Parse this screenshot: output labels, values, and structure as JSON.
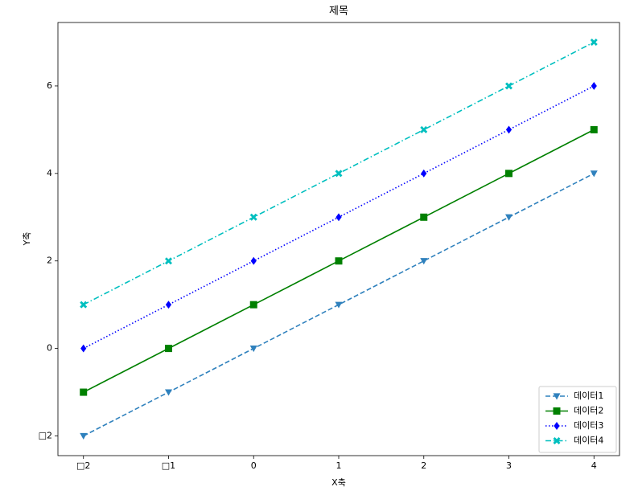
{
  "chart_data": {
    "type": "line",
    "title": "제목",
    "x_label": "X축",
    "y_label": "Y축",
    "x": [
      -2,
      -1,
      0,
      1,
      2,
      3,
      4
    ],
    "series": [
      {
        "name": "데이터1",
        "color": "#2f81bd",
        "linestyle": "--",
        "marker": "v",
        "values": [
          -2,
          -1,
          0,
          1,
          2,
          3,
          4
        ]
      },
      {
        "name": "데이터2",
        "color": "#008000",
        "linestyle": "-",
        "marker": "s",
        "values": [
          -1,
          0,
          1,
          2,
          3,
          4,
          5
        ]
      },
      {
        "name": "데이터3",
        "color": "#0000ff",
        "linestyle": ":",
        "marker": "D",
        "values": [
          0,
          1,
          2,
          3,
          4,
          5,
          6
        ]
      },
      {
        "name": "데이터4",
        "color": "#00bfbf",
        "linestyle": "-.",
        "marker": "X",
        "values": [
          1,
          2,
          3,
          4,
          5,
          6,
          7
        ]
      }
    ],
    "xlim": [
      -2.3,
      4.3
    ],
    "xticks": [
      {
        "value": -2,
        "label": "□2"
      },
      {
        "value": -1,
        "label": "□1"
      },
      0,
      1,
      2,
      3,
      4
    ],
    "ylim": [
      -2.45,
      7.45
    ],
    "yticks": [
      {
        "value": -2,
        "label": "□2"
      },
      0,
      2,
      4,
      6
    ],
    "grid": false,
    "legend": "lower right"
  }
}
